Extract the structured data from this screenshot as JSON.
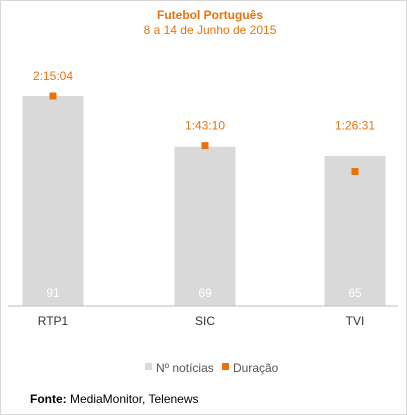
{
  "chart_data": {
    "type": "bar",
    "title": "Futebol Português",
    "subtitle": "8 a 14 de Junho de 2015",
    "categories": [
      "RTP1",
      "SIC",
      "TVI"
    ],
    "series": [
      {
        "name": "Nº notícias",
        "values": [
          91,
          69,
          65
        ],
        "color": "#d9d9d9"
      },
      {
        "name": "Duração",
        "values": [
          "2:15:04",
          "1:43:10",
          "1:26:31"
        ],
        "seconds": [
          8104,
          6190,
          5191
        ],
        "color": "#e8730c",
        "marker": "square"
      }
    ],
    "bar_ylim": [
      0,
      100
    ],
    "duration_ylim": [
      0,
      9000
    ],
    "legend_position": "bottom",
    "grid": false
  },
  "source": {
    "label": "Fonte:",
    "text": "MediaMonitor, Telenews"
  }
}
